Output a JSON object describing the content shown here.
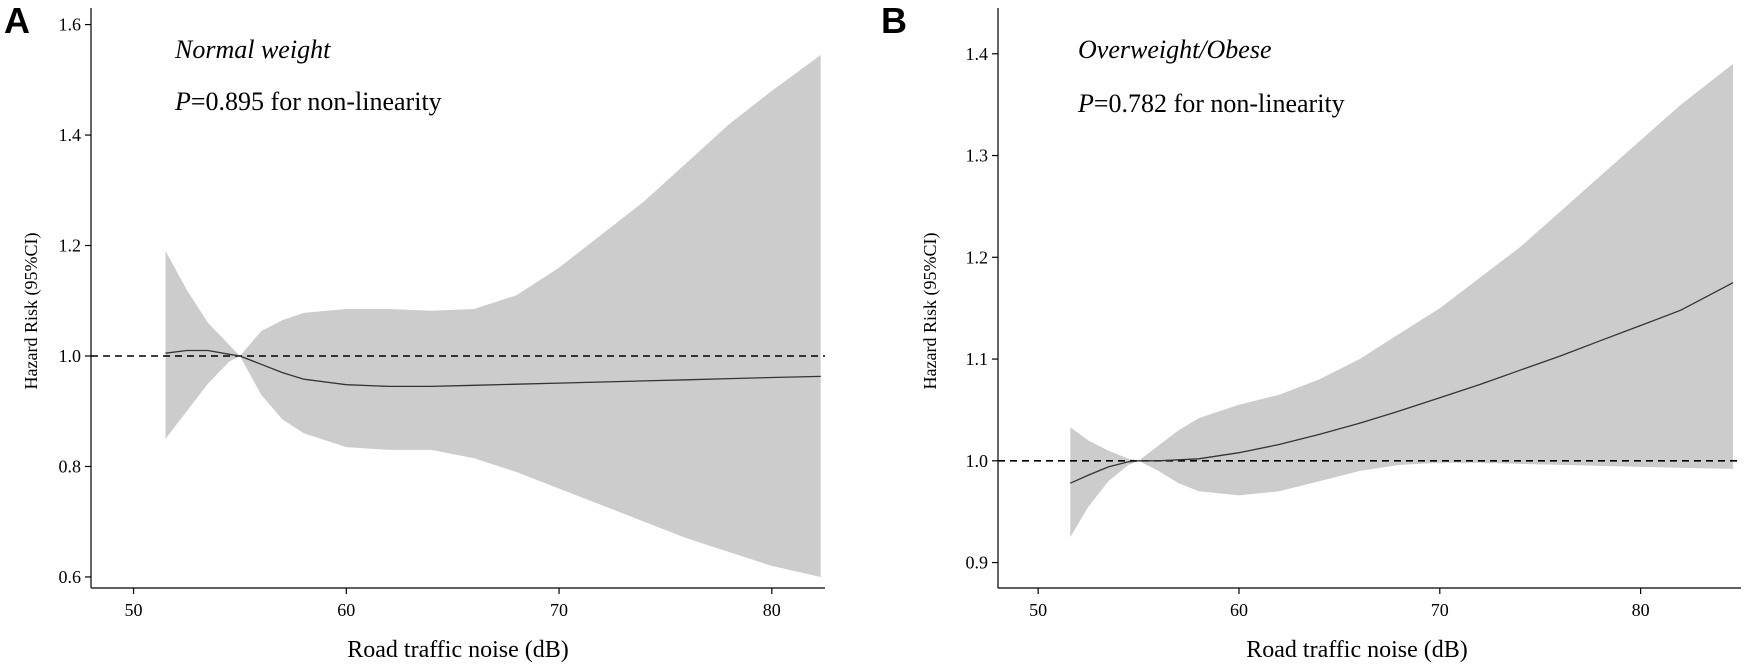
{
  "chart_data": [
    {
      "type": "line",
      "panel_label": "A",
      "subtitle": "Normal weight",
      "annotation": {
        "p_symbol": "P",
        "p_text": "=0.895 for non-linearity"
      },
      "xlabel": "Road traffic noise (dB)",
      "ylabel": "Hazard Risk (95%CI)",
      "xlim": [
        48,
        82.5
      ],
      "ylim": [
        0.58,
        1.63
      ],
      "xticks": [
        50,
        60,
        70,
        80
      ],
      "xtick_labels": [
        "50",
        "60",
        "70",
        "80"
      ],
      "yticks": [
        0.6,
        0.8,
        1.0,
        1.2,
        1.4,
        1.6
      ],
      "ytick_labels": [
        "0.6",
        "0.8",
        "1.0",
        "1.2",
        "1.4",
        "1.6"
      ],
      "reference_line": 1.0,
      "grid": false,
      "series": [
        {
          "x": [
            51.5,
            52.5,
            53.5,
            54.5,
            55,
            56,
            57,
            58,
            60,
            62,
            64,
            66,
            68,
            70,
            72,
            74,
            76,
            78,
            80,
            82.3
          ],
          "y": [
            1.005,
            1.01,
            1.01,
            1.003,
            1.0,
            0.985,
            0.97,
            0.958,
            0.948,
            0.945,
            0.945,
            0.947,
            0.949,
            0.951,
            0.953,
            0.955,
            0.957,
            0.959,
            0.961,
            0.963
          ],
          "lower": [
            0.85,
            0.9,
            0.95,
            0.99,
            1.0,
            0.93,
            0.885,
            0.86,
            0.835,
            0.83,
            0.83,
            0.815,
            0.79,
            0.76,
            0.73,
            0.7,
            0.67,
            0.645,
            0.62,
            0.6
          ],
          "upper": [
            1.19,
            1.12,
            1.06,
            1.02,
            1.0,
            1.045,
            1.065,
            1.078,
            1.085,
            1.085,
            1.082,
            1.085,
            1.11,
            1.16,
            1.22,
            1.28,
            1.35,
            1.42,
            1.48,
            1.545
          ]
        }
      ]
    },
    {
      "type": "line",
      "panel_label": "B",
      "subtitle": "Overweight/Obese",
      "annotation": {
        "p_symbol": "P",
        "p_text": "=0.782 for non-linearity"
      },
      "xlabel": "Road traffic noise (dB)",
      "ylabel": "Hazard Risk (95%CI)",
      "xlim": [
        48,
        85
      ],
      "ylim": [
        0.875,
        1.445
      ],
      "xticks": [
        50,
        60,
        70,
        80
      ],
      "xtick_labels": [
        "50",
        "60",
        "70",
        "80"
      ],
      "yticks": [
        0.9,
        1.0,
        1.1,
        1.2,
        1.3,
        1.4
      ],
      "ytick_labels": [
        "0.9",
        "1.0",
        "1.1",
        "1.2",
        "1.3",
        "1.4"
      ],
      "reference_line": 1.0,
      "grid": false,
      "series": [
        {
          "x": [
            51.6,
            52.5,
            53.5,
            54.5,
            55,
            56,
            57,
            58,
            60,
            62,
            64,
            66,
            68,
            70,
            72,
            74,
            76,
            78,
            80,
            82,
            84.6
          ],
          "y": [
            0.978,
            0.986,
            0.994,
            0.999,
            1.0,
            1.0,
            1.001,
            1.002,
            1.008,
            1.016,
            1.026,
            1.037,
            1.049,
            1.062,
            1.075,
            1.089,
            1.103,
            1.118,
            1.133,
            1.148,
            1.175
          ],
          "lower": [
            0.925,
            0.955,
            0.98,
            0.996,
            1.0,
            0.99,
            0.978,
            0.97,
            0.966,
            0.97,
            0.98,
            0.99,
            0.996,
            0.998,
            0.998,
            0.997,
            0.996,
            0.995,
            0.994,
            0.993,
            0.992
          ],
          "upper": [
            1.033,
            1.02,
            1.01,
            1.002,
            1.0,
            1.015,
            1.03,
            1.042,
            1.055,
            1.065,
            1.08,
            1.1,
            1.125,
            1.15,
            1.18,
            1.21,
            1.245,
            1.28,
            1.315,
            1.35,
            1.39
          ]
        }
      ]
    }
  ]
}
